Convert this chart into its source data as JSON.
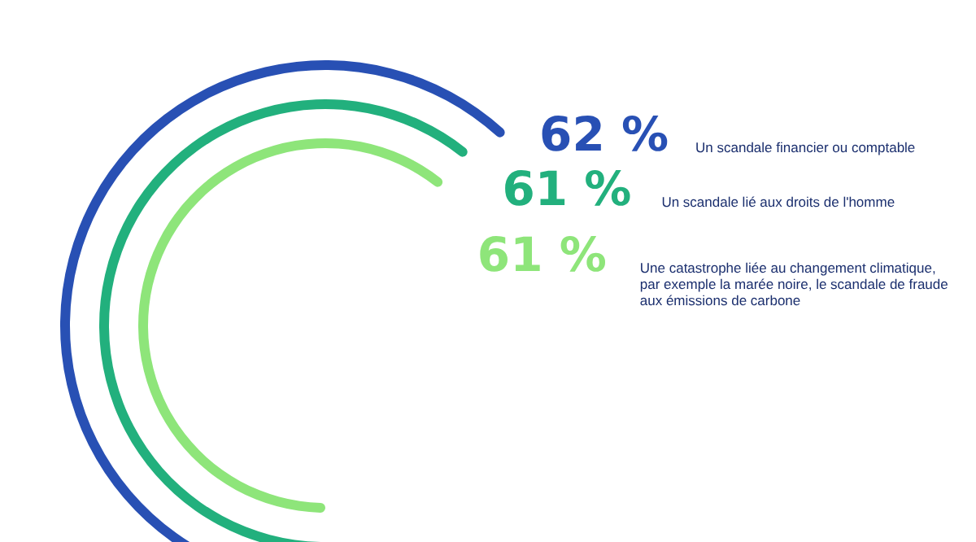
{
  "chart_data": {
    "type": "other",
    "categories": [
      "Un scandale financier ou comptable",
      "Un scandale lié aux droits de l'homme",
      "Une catastrophe liée au changement climatique, par exemple la marée noire, le scandale de fraude aux émissions de carbone"
    ],
    "values": [
      62,
      61,
      61
    ],
    "value_labels": [
      "62 %",
      "61 %",
      "61 %"
    ],
    "colors": [
      "#2850b4",
      "#22b07d",
      "#8ee57a"
    ]
  }
}
